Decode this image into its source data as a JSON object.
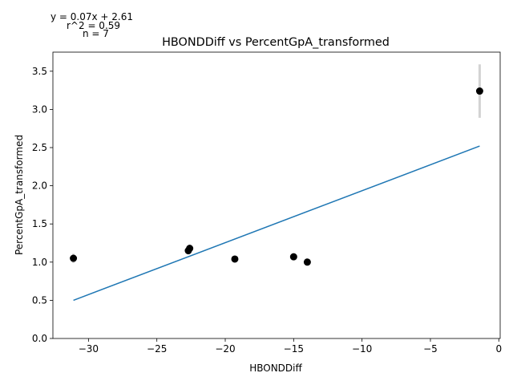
{
  "chart_data": {
    "type": "scatter",
    "title": "HBONDDiff vs PercentGpA_transformed",
    "xlabel": "HBONDDiff",
    "ylabel": "PercentGpA_transformed",
    "xlim": [
      -32.6,
      0.1
    ],
    "ylim": [
      0,
      3.75
    ],
    "xticks": [
      -30,
      -25,
      -20,
      -15,
      -10,
      -5,
      0
    ],
    "xtick_labels": [
      "−30",
      "−25",
      "−20",
      "−15",
      "−10",
      "−5",
      "0"
    ],
    "yticks": [
      0.0,
      0.5,
      1.0,
      1.5,
      2.0,
      2.5,
      3.0,
      3.5
    ],
    "ytick_labels": [
      "0.0",
      "0.5",
      "1.0",
      "1.5",
      "2.0",
      "2.5",
      "3.0",
      "3.5"
    ],
    "grid": false,
    "points": [
      {
        "x": -31.1,
        "y": 1.05,
        "err": 0.06
      },
      {
        "x": -22.7,
        "y": 1.15,
        "err": 0.05
      },
      {
        "x": -22.6,
        "y": 1.18,
        "err": 0.05
      },
      {
        "x": -19.3,
        "y": 1.04,
        "err": 0.02
      },
      {
        "x": -15.0,
        "y": 1.07,
        "err": 0.02
      },
      {
        "x": -14.0,
        "y": 1.0,
        "err": 0.02
      },
      {
        "x": -1.4,
        "y": 3.24,
        "err": 0.35
      }
    ],
    "fit": {
      "x": [
        -31.1,
        -1.4
      ],
      "y": [
        0.5,
        2.52
      ]
    },
    "colors": {
      "points": "#000000",
      "fit_line": "#1f77b4",
      "error_bars": "#d3d3d3"
    },
    "annotations": {
      "equation": "y = 0.07x + 2.61",
      "r2": "r^2 = 0.59",
      "n": "n = 7"
    }
  }
}
